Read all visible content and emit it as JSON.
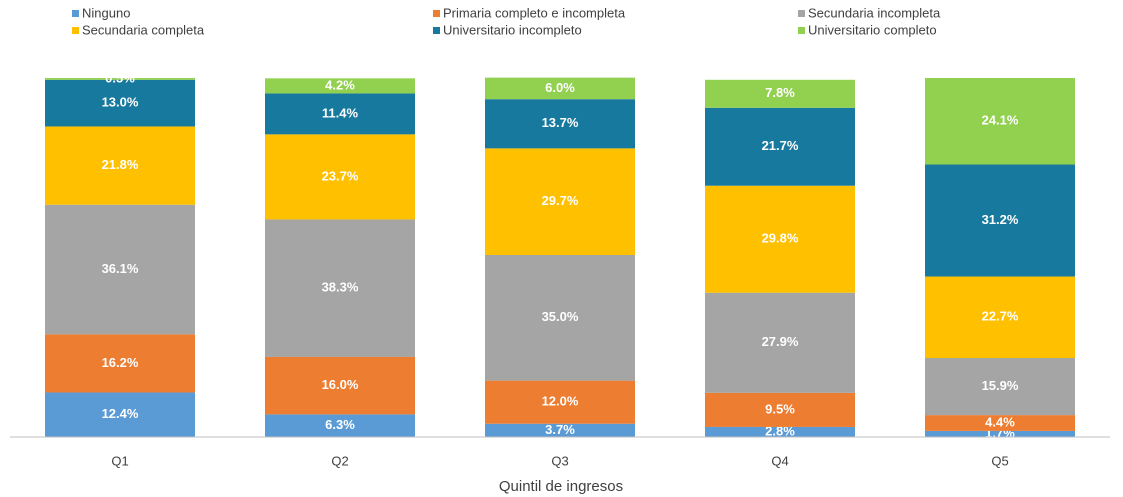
{
  "chart_data": {
    "type": "stacked_bar",
    "x_label": "Quintil de ingresos",
    "categories": [
      "Q1",
      "Q2",
      "Q3",
      "Q4",
      "Q5"
    ],
    "ylim": [
      0,
      100
    ],
    "series": [
      {
        "name": "Ninguno",
        "color": "#5b9bd5",
        "values": [
          12.4,
          6.3,
          3.7,
          2.8,
          1.7
        ],
        "value_labels": [
          "12.4%",
          "6.3%",
          "3.7%",
          "2.8%",
          "1.7%"
        ]
      },
      {
        "name": "Primaria completo e incompleta",
        "color": "#ed7d31",
        "values": [
          16.2,
          16.0,
          12.0,
          9.5,
          4.4
        ],
        "value_labels": [
          "16.2%",
          "16.0%",
          "12.0%",
          "9.5%",
          "4.4%"
        ]
      },
      {
        "name": "Secundaria incompleta",
        "color": "#a5a5a5",
        "values": [
          36.1,
          38.3,
          35.0,
          27.9,
          15.9
        ],
        "value_labels": [
          "36.1%",
          "38.3%",
          "35.0%",
          "27.9%",
          "15.9%"
        ]
      },
      {
        "name": "Secundaria completa",
        "color": "#ffc000",
        "values": [
          21.8,
          23.7,
          29.7,
          29.8,
          22.7
        ],
        "value_labels": [
          "21.8%",
          "23.7%",
          "29.7%",
          "29.8%",
          "22.7%"
        ]
      },
      {
        "name": "Universitario incompleto",
        "color": "#17799e",
        "values": [
          13.0,
          11.4,
          13.7,
          21.7,
          31.2
        ],
        "value_labels": [
          "13.0%",
          "11.4%",
          "13.7%",
          "21.7%",
          "31.2%"
        ]
      },
      {
        "name": "Universitario completo",
        "color": "#92d050",
        "values": [
          0.5,
          4.2,
          6.0,
          7.8,
          24.1
        ],
        "value_labels": [
          "0.5%",
          "4.2%",
          "6.0%",
          "7.8%",
          "24.1%"
        ]
      }
    ]
  }
}
